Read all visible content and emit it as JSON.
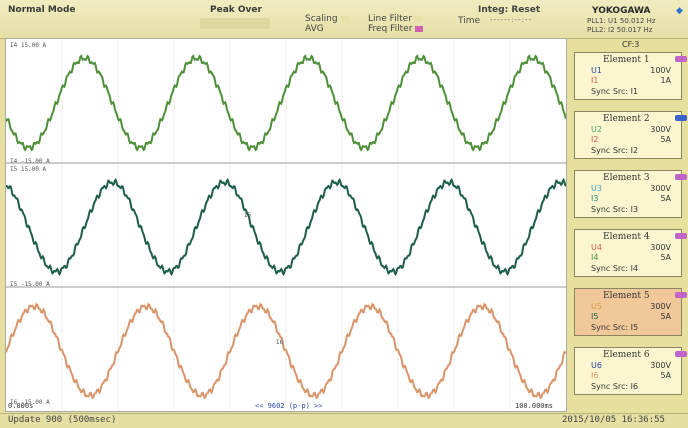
{
  "header": {
    "mode": "Normal Mode",
    "peak_over": "Peak Over",
    "scaling": "Scaling",
    "avg": "AVG",
    "line_filter": "Line Filter",
    "freq_filter": "Freq Filter",
    "time_label": "Time",
    "integ": "Integ: Reset",
    "time_value": "------:--:--",
    "brand": "YOKOGAWA",
    "pll1": "PLL1: U1  50.012 Hz",
    "pll2": "PLL2: I2  50.017 Hz",
    "cf": "CF:3"
  },
  "traces": [
    {
      "top_label": "I4   15.00 A",
      "bottom_label": "I4  -15.00 A",
      "color": "#4f8f3a",
      "marker": "I4"
    },
    {
      "top_label": "I5   15.00 A",
      "bottom_label": "I5  -15.00 A",
      "color": "#1f5e48",
      "marker": "I5"
    },
    {
      "top_label": "",
      "bottom_label": "I6  -15.00 A",
      "color": "#d9956a",
      "marker": "I6"
    }
  ],
  "time_axis": {
    "start": "0.000s",
    "center": "<< 9602 (p-p) >>",
    "end": "100.000ms"
  },
  "elements": [
    {
      "title": "Element 1",
      "u": "U1",
      "u_range": "100V",
      "i": "I1",
      "i_range": "1A",
      "sync": "Sync Src: I1",
      "tag_color": "#c064c8",
      "u_color": "#2a44a8",
      "i_color": "#d85a5a",
      "sync_color": "#c064c8",
      "active": false
    },
    {
      "title": "Element 2",
      "u": "U2",
      "u_range": "300V",
      "i": "I2",
      "i_range": "5A",
      "sync": "Sync Src: I2",
      "tag_color": "#3a62c8",
      "u_color": "#4aa06a",
      "i_color": "#d85a5a",
      "sync_color": "#d85a5a",
      "active": false
    },
    {
      "title": "Element 3",
      "u": "U3",
      "u_range": "300V",
      "i": "I3",
      "i_range": "5A",
      "sync": "Sync Src: I3",
      "tag_color": "#c064c8",
      "u_color": "#4aa0c8",
      "i_color": "#2a8a8a",
      "sync_color": "#2a8ab8",
      "active": false
    },
    {
      "title": "Element 4",
      "u": "U4",
      "u_range": "300V",
      "i": "I4",
      "i_range": "5A",
      "sync": "Sync Src: I4",
      "tag_color": "#c064c8",
      "u_color": "#d85a5a",
      "i_color": "#4f8f3a",
      "sync_color": "#2a8ab8",
      "active": false
    },
    {
      "title": "Element 5",
      "u": "U5",
      "u_range": "300V",
      "i": "I5",
      "i_range": "5A",
      "sync": "Sync Src: I5",
      "tag_color": "#c064c8",
      "u_color": "#d8a04a",
      "i_color": "#1f5e48",
      "sync_color": "#2a8ab8",
      "active": true
    },
    {
      "title": "Element 6",
      "u": "U6",
      "u_range": "300V",
      "i": "I6",
      "i_range": "5A",
      "sync": "Sync Src: I6",
      "tag_color": "#c064c8",
      "u_color": "#2a44a8",
      "i_color": "#d9956a",
      "sync_color": "#d9956a",
      "active": false
    }
  ],
  "status": {
    "update": "Update  900 (500msec)",
    "datetime": "2015/10/05 16:36:55"
  }
}
